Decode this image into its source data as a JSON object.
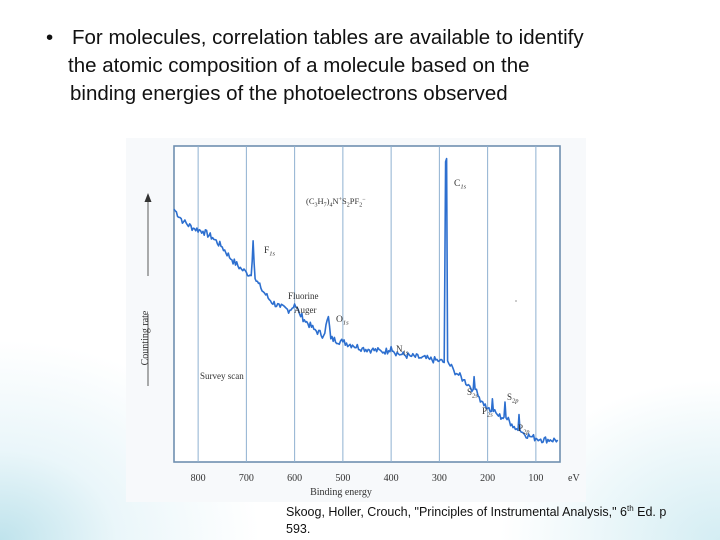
{
  "slide": {
    "bullet_symbol": "•",
    "bullet_lines": [
      "For molecules, correlation tables are available to identify",
      "the atomic composition of a molecule based on the",
      "binding energies of the photoelectrons observed"
    ],
    "citation_part1": "Skoog, Holler, Crouch, \"Principles of Instrumental Analysis,\"  6",
    "citation_sup": "th",
    "citation_part2": " Ed. p",
    "citation_line2": "593."
  },
  "chart_data": {
    "type": "line",
    "title": "(C3H7)4N+S2PF2−",
    "title_parts": {
      "base": "(C",
      "s1": "3",
      "m1": "H",
      "s2": "7",
      "m2": ")",
      "s3": "4",
      "m3": "N",
      "p1": "+",
      "m4": "S",
      "s4": "2",
      "m5": "PF",
      "s5": "2",
      "p2": "−"
    },
    "xlabel": "Binding energy",
    "x_unit": "eV",
    "ylabel": "Counting rate",
    "xlim": [
      850,
      50
    ],
    "x_reversed": true,
    "xticks": [
      800,
      700,
      600,
      500,
      400,
      300,
      200,
      100
    ],
    "grid": true,
    "annotations": [
      {
        "id": "c1s",
        "base": "C",
        "sub": "1s",
        "x": 285
      },
      {
        "id": "f1s",
        "base": "F",
        "sub": "1s",
        "x": 686
      },
      {
        "id": "fauger",
        "line1": "Fluorine",
        "line2": "Auger",
        "x": 600
      },
      {
        "id": "o1s",
        "base": "O",
        "sub": "1s",
        "x": 530
      },
      {
        "id": "n1s",
        "base": "N",
        "sub": "1s",
        "x": 400
      },
      {
        "id": "s2s",
        "base": "S",
        "sub": "2s",
        "x": 228
      },
      {
        "id": "p2s",
        "base": "P",
        "sub": "2s",
        "x": 190
      },
      {
        "id": "s2p",
        "base": "S",
        "sub": "2p",
        "x": 164
      },
      {
        "id": "p2p",
        "base": "P",
        "sub": "2p",
        "x": 135
      },
      {
        "id": "survey",
        "text": "Survey scan"
      }
    ],
    "series": [
      {
        "name": "Survey scan",
        "x": [
          850,
          830,
          810,
          790,
          770,
          750,
          730,
          710,
          700,
          690,
          686,
          682,
          670,
          650,
          630,
          610,
          600,
          590,
          580,
          560,
          540,
          530,
          525,
          500,
          480,
          460,
          440,
          420,
          405,
          400,
          395,
          380,
          360,
          340,
          320,
          300,
          290,
          287,
          285,
          283,
          280,
          270,
          260,
          250,
          240,
          230,
          228,
          226,
          220,
          210,
          200,
          192,
          190,
          188,
          180,
          170,
          166,
          164,
          162,
          150,
          140,
          137,
          135,
          133,
          125,
          110,
          100,
          90,
          70,
          55
        ],
        "y": [
          80,
          76,
          74,
          73,
          71,
          68,
          64,
          61,
          60,
          59,
          70,
          58,
          55,
          51,
          49,
          48,
          50,
          47,
          45,
          42,
          40,
          46,
          39,
          38,
          37,
          36,
          35.5,
          35,
          35.2,
          36.5,
          35,
          34,
          33.5,
          33,
          32.5,
          32,
          31.5,
          95,
          96,
          32,
          31,
          29,
          27.5,
          26,
          24.5,
          23,
          27,
          23,
          21,
          19,
          17,
          16,
          20,
          16,
          15,
          14,
          14.2,
          19,
          14,
          12,
          10.5,
          10,
          15,
          10,
          9,
          8,
          7.5,
          7.2,
          7,
          7
        ]
      }
    ]
  }
}
